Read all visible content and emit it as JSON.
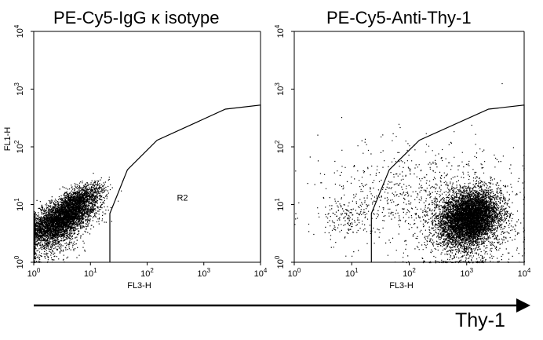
{
  "figure": {
    "axis_label": "Thy-1"
  },
  "chart_data": [
    {
      "type": "scatter",
      "title": "PE-Cy5-IgG κ isotype",
      "xlabel": "FL3-H",
      "ylabel": "FL1-H",
      "x_scale": "log",
      "y_scale": "log",
      "xlim": [
        1,
        10000
      ],
      "ylim": [
        1,
        10000
      ],
      "x_ticks": [
        {
          "value": 1,
          "label": "10^0"
        },
        {
          "value": 10,
          "label": "10^1"
        },
        {
          "value": 100,
          "label": "10^2"
        },
        {
          "value": 1000,
          "label": "10^3"
        },
        {
          "value": 10000,
          "label": "10^4"
        }
      ],
      "y_ticks": [
        {
          "value": 1,
          "label": "10^0"
        },
        {
          "value": 10,
          "label": "10^1"
        },
        {
          "value": 100,
          "label": "10^2"
        },
        {
          "value": 1000,
          "label": "10^3"
        },
        {
          "value": 10000,
          "label": "10^4"
        }
      ],
      "gate": {
        "name": "R2",
        "vertices": [
          [
            22,
            1
          ],
          [
            22,
            7
          ],
          [
            45,
            40
          ],
          [
            150,
            130
          ],
          [
            2400,
            450
          ],
          [
            10000,
            530
          ],
          [
            10000,
            1
          ]
        ]
      },
      "populations": [
        {
          "center": [
            3.0,
            5.5
          ],
          "spread": [
            0.28,
            0.16
          ],
          "tilt": 0.55,
          "events": 5000
        },
        {
          "center": [
            6.0,
            12
          ],
          "spread": [
            0.22,
            0.14
          ],
          "tilt": 0.6,
          "events": 1500
        },
        {
          "center": [
            2.0,
            3.0
          ],
          "spread": [
            0.25,
            0.22
          ],
          "tilt": 0.3,
          "events": 1000
        }
      ]
    },
    {
      "type": "scatter",
      "title": "PE-Cy5-Anti-Thy-1",
      "xlabel": "FL3-H",
      "ylabel": "",
      "x_scale": "log",
      "y_scale": "log",
      "xlim": [
        1,
        10000
      ],
      "ylim": [
        1,
        10000
      ],
      "x_ticks": [
        {
          "value": 1,
          "label": "10^0"
        },
        {
          "value": 10,
          "label": "10^1"
        },
        {
          "value": 100,
          "label": "10^2"
        },
        {
          "value": 1000,
          "label": "10^3"
        },
        {
          "value": 10000,
          "label": "10^4"
        }
      ],
      "y_ticks": [
        {
          "value": 1,
          "label": "10^0"
        },
        {
          "value": 10,
          "label": "10^1"
        },
        {
          "value": 100,
          "label": "10^2"
        },
        {
          "value": 1000,
          "label": "10^3"
        },
        {
          "value": 10000,
          "label": "10^4"
        }
      ],
      "gate": {
        "vertices": [
          [
            22,
            1
          ],
          [
            22,
            7
          ],
          [
            45,
            40
          ],
          [
            150,
            130
          ],
          [
            2400,
            450
          ],
          [
            10000,
            530
          ],
          [
            10000,
            1
          ]
        ]
      },
      "populations": [
        {
          "center": [
            1100,
            6.0
          ],
          "spread": [
            0.25,
            0.22
          ],
          "tilt": 0.2,
          "events": 6000
        },
        {
          "center": [
            1000,
            4.0
          ],
          "spread": [
            0.4,
            0.45
          ],
          "tilt": 0.1,
          "events": 1200
        },
        {
          "center": [
            8.0,
            6.0
          ],
          "spread": [
            0.2,
            0.2
          ],
          "tilt": 0.2,
          "events": 160
        },
        {
          "center": [
            120,
            15
          ],
          "spread": [
            0.8,
            0.45
          ],
          "tilt": 0.0,
          "events": 700
        }
      ]
    }
  ]
}
